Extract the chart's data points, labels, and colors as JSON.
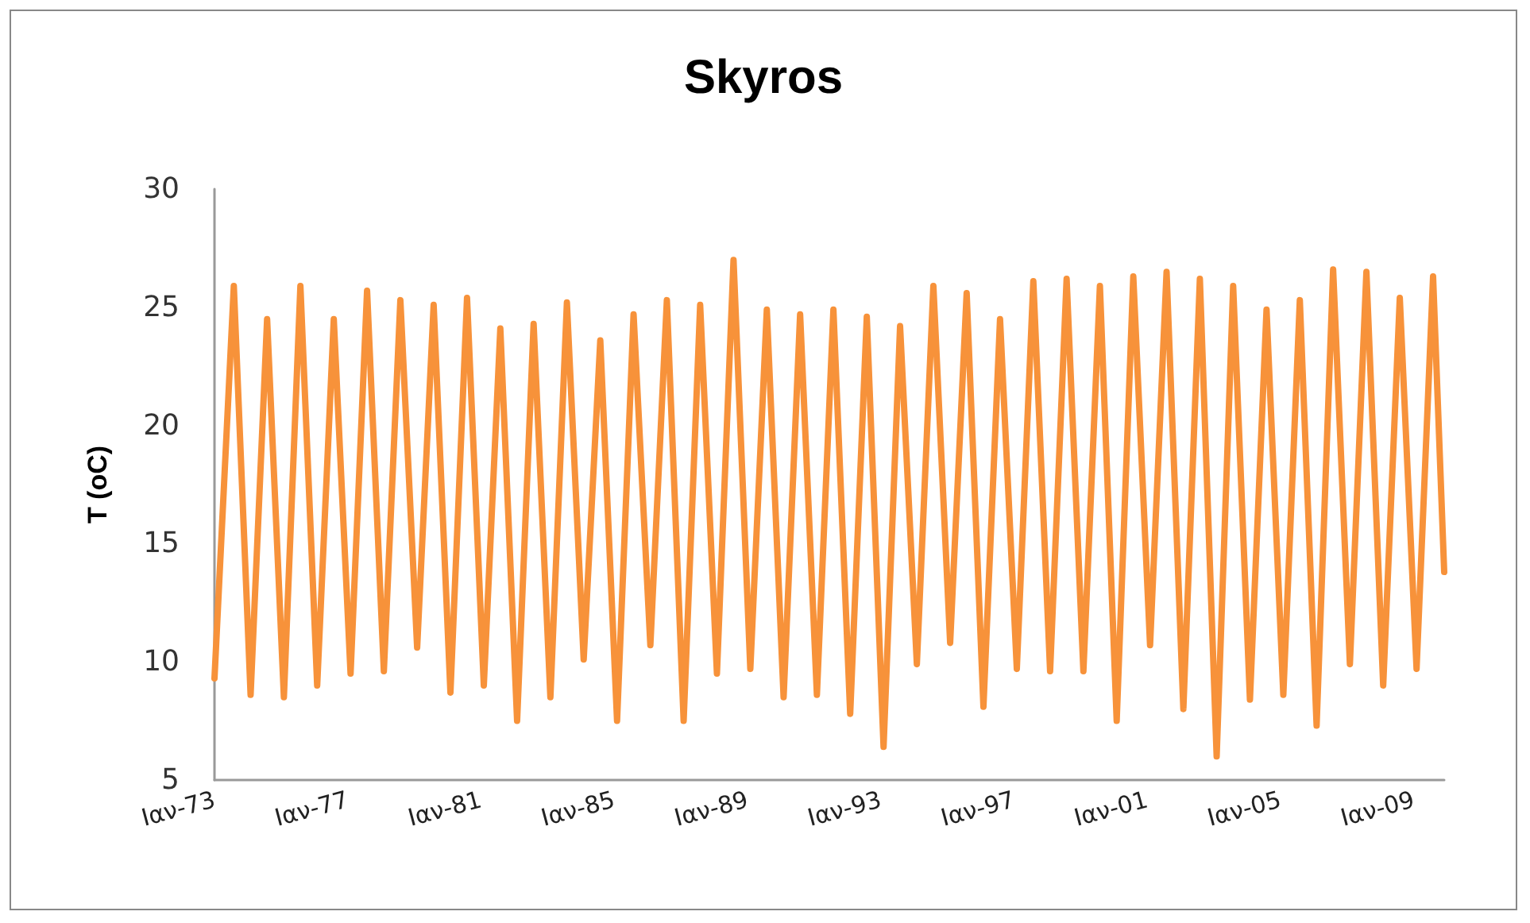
{
  "chart_data": {
    "type": "line",
    "title": "Skyros",
    "ylabel": "T (oC)",
    "x": [
      "1973-01",
      "1973-08",
      "1974-02",
      "1974-08",
      "1975-02",
      "1975-08",
      "1976-02",
      "1976-08",
      "1977-02",
      "1977-08",
      "1978-02",
      "1978-08",
      "1979-02",
      "1979-08",
      "1980-02",
      "1980-08",
      "1981-02",
      "1981-08",
      "1982-02",
      "1982-08",
      "1983-02",
      "1983-08",
      "1984-02",
      "1984-08",
      "1985-02",
      "1985-08",
      "1986-02",
      "1986-08",
      "1987-02",
      "1987-08",
      "1988-02",
      "1988-08",
      "1989-02",
      "1989-08",
      "1990-02",
      "1990-08",
      "1991-02",
      "1991-08",
      "1992-02",
      "1992-08",
      "1993-02",
      "1993-08",
      "1994-02",
      "1994-08",
      "1995-02",
      "1995-08",
      "1996-02",
      "1996-08",
      "1997-02",
      "1997-08",
      "1998-02",
      "1998-08",
      "1999-02",
      "1999-08",
      "2000-02",
      "2000-08",
      "2001-02",
      "2001-08",
      "2002-02",
      "2002-08",
      "2003-02",
      "2003-08",
      "2004-02",
      "2004-08",
      "2005-02",
      "2005-08",
      "2006-02",
      "2006-08",
      "2007-02",
      "2007-08",
      "2008-02",
      "2008-08",
      "2009-02",
      "2009-08",
      "2009-12"
    ],
    "series": [
      {
        "color": "#f7923a",
        "values": [
          9.3,
          25.9,
          8.6,
          24.5,
          8.5,
          25.9,
          9.0,
          24.5,
          9.5,
          25.7,
          9.6,
          25.3,
          10.6,
          25.1,
          8.7,
          25.4,
          9.0,
          24.1,
          7.5,
          24.3,
          8.5,
          25.2,
          10.1,
          23.6,
          7.5,
          24.7,
          10.7,
          25.3,
          7.5,
          25.1,
          9.5,
          27.0,
          9.7,
          24.9,
          8.5,
          24.7,
          8.6,
          24.9,
          7.8,
          24.6,
          6.4,
          24.2,
          9.9,
          25.9,
          10.8,
          25.6,
          8.1,
          24.5,
          9.7,
          26.1,
          9.6,
          26.2,
          9.6,
          25.9,
          7.5,
          26.3,
          10.7,
          26.5,
          8.0,
          26.2,
          6.0,
          25.9,
          8.4,
          24.9,
          8.6,
          25.3,
          7.3,
          26.6,
          9.9,
          26.5,
          9.0,
          25.4,
          9.7,
          26.3,
          13.8
        ]
      }
    ],
    "xlim": [
      "1973-01",
      "2009-12"
    ],
    "xticks": [
      {
        "value": "1973-01",
        "label": "Ιαν-73"
      },
      {
        "value": "1977-01",
        "label": "Ιαν-77"
      },
      {
        "value": "1981-01",
        "label": "Ιαν-81"
      },
      {
        "value": "1985-01",
        "label": "Ιαν-85"
      },
      {
        "value": "1989-01",
        "label": "Ιαν-89"
      },
      {
        "value": "1993-01",
        "label": "Ιαν-93"
      },
      {
        "value": "1997-01",
        "label": "Ιαν-97"
      },
      {
        "value": "2001-01",
        "label": "Ιαν-01"
      },
      {
        "value": "2005-01",
        "label": "Ιαν-05"
      },
      {
        "value": "2009-01",
        "label": "Ιαν-09"
      }
    ],
    "ylim": [
      5,
      30
    ],
    "yticks": [
      5,
      10,
      15,
      20,
      25,
      30
    ],
    "grid": false,
    "marker": "none",
    "line_style": "solid"
  }
}
